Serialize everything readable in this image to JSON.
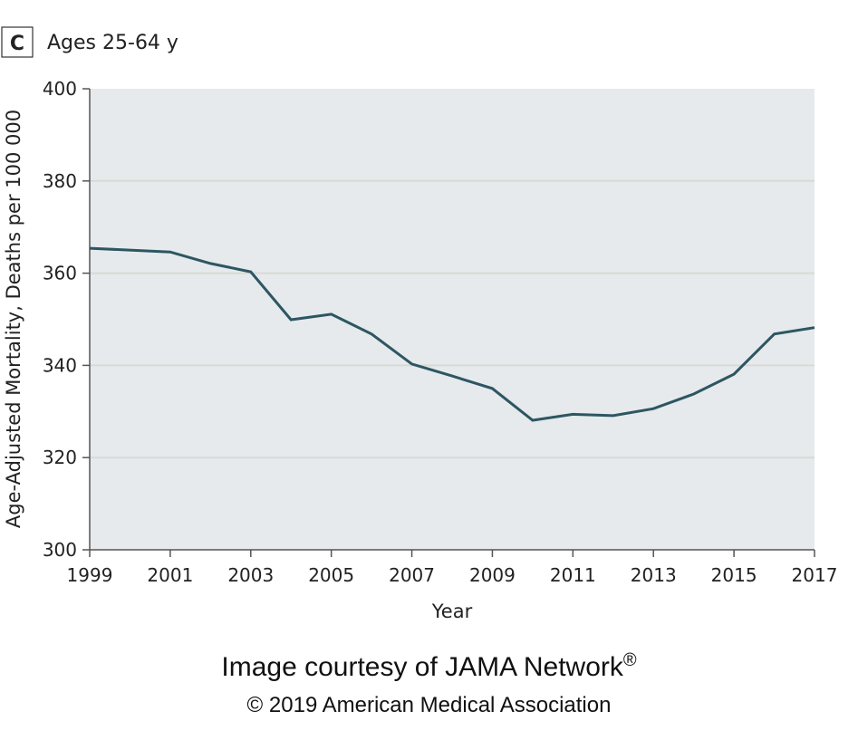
{
  "panel": {
    "letter": "C",
    "title": "Ages 25-64 y"
  },
  "footer": {
    "courtesy": "Image courtesy of JAMA Network",
    "registered": "®",
    "copyright": "© 2019 American Medical Association"
  },
  "colors": {
    "plot_bg": "#e6eaec",
    "line": "#2d5662",
    "grid": "#d9d9d5",
    "axis": "#555555"
  },
  "chart_data": {
    "type": "line",
    "title": "Ages 25-64 y",
    "xlabel": "Year",
    "ylabel": "Age-Adjusted Mortality, Deaths per 100 000",
    "xlim": [
      1999,
      2017
    ],
    "ylim": [
      300,
      400
    ],
    "x_ticks": [
      1999,
      2001,
      2003,
      2005,
      2007,
      2009,
      2011,
      2013,
      2015,
      2017
    ],
    "y_ticks": [
      300,
      320,
      340,
      360,
      380,
      400
    ],
    "grid": "horizontal",
    "series": [
      {
        "name": "Ages 25-64 y",
        "x": [
          1999,
          2001,
          2002,
          2003,
          2004,
          2005,
          2006,
          2007,
          2008,
          2009,
          2010,
          2011,
          2012,
          2013,
          2014,
          2015,
          2016,
          2017
        ],
        "values": [
          365.4,
          364.6,
          362.1,
          360.3,
          349.9,
          351.1,
          346.8,
          340.3,
          337.7,
          335.0,
          328.1,
          329.4,
          329.1,
          330.6,
          333.8,
          338.1,
          346.8,
          348.2
        ]
      }
    ]
  }
}
